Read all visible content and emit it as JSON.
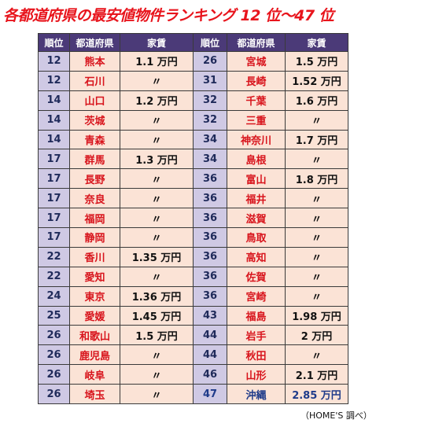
{
  "title": "各都道府県の最安値物件ランキング 12 位～47 位",
  "table": {
    "header": [
      "順位",
      "都道府県",
      "家賃",
      "順位",
      "都道府県",
      "家賃"
    ],
    "rows": [
      [
        "12",
        "熊本",
        "1.1 万円",
        "26",
        "宮城",
        "1.5 万円"
      ],
      [
        "12",
        "石川",
        "〃",
        "31",
        "長崎",
        "1.52 万円"
      ],
      [
        "14",
        "山口",
        "1.2 万円",
        "32",
        "千葉",
        "1.6 万円"
      ],
      [
        "14",
        "茨城",
        "〃",
        "32",
        "三重",
        "〃"
      ],
      [
        "14",
        "青森",
        "〃",
        "34",
        "神奈川",
        "1.7 万円"
      ],
      [
        "17",
        "群馬",
        "1.3 万円",
        "34",
        "島根",
        "〃"
      ],
      [
        "17",
        "長野",
        "〃",
        "36",
        "富山",
        "1.8 万円"
      ],
      [
        "17",
        "奈良",
        "〃",
        "36",
        "福井",
        "〃"
      ],
      [
        "17",
        "福岡",
        "〃",
        "36",
        "滋賀",
        "〃"
      ],
      [
        "17",
        "静岡",
        "〃",
        "36",
        "鳥取",
        "〃"
      ],
      [
        "22",
        "香川",
        "1.35 万円",
        "36",
        "高知",
        "〃"
      ],
      [
        "22",
        "愛知",
        "〃",
        "36",
        "佐賀",
        "〃"
      ],
      [
        "24",
        "東京",
        "1.36 万円",
        "36",
        "宮崎",
        "〃"
      ],
      [
        "25",
        "愛媛",
        "1.45 万円",
        "43",
        "福島",
        "1.98 万円"
      ],
      [
        "26",
        "和歌山",
        "1.5 万円",
        "44",
        "岩手",
        "2 万円"
      ],
      [
        "26",
        "鹿児島",
        "〃",
        "44",
        "秋田",
        "〃"
      ],
      [
        "26",
        "岐阜",
        "〃",
        "46",
        "山形",
        "2.1 万円"
      ],
      [
        "26",
        "埼玉",
        "〃",
        "47",
        "沖縄",
        "2.85 万円"
      ]
    ]
  },
  "footer": "（HOME'S 調べ）"
}
